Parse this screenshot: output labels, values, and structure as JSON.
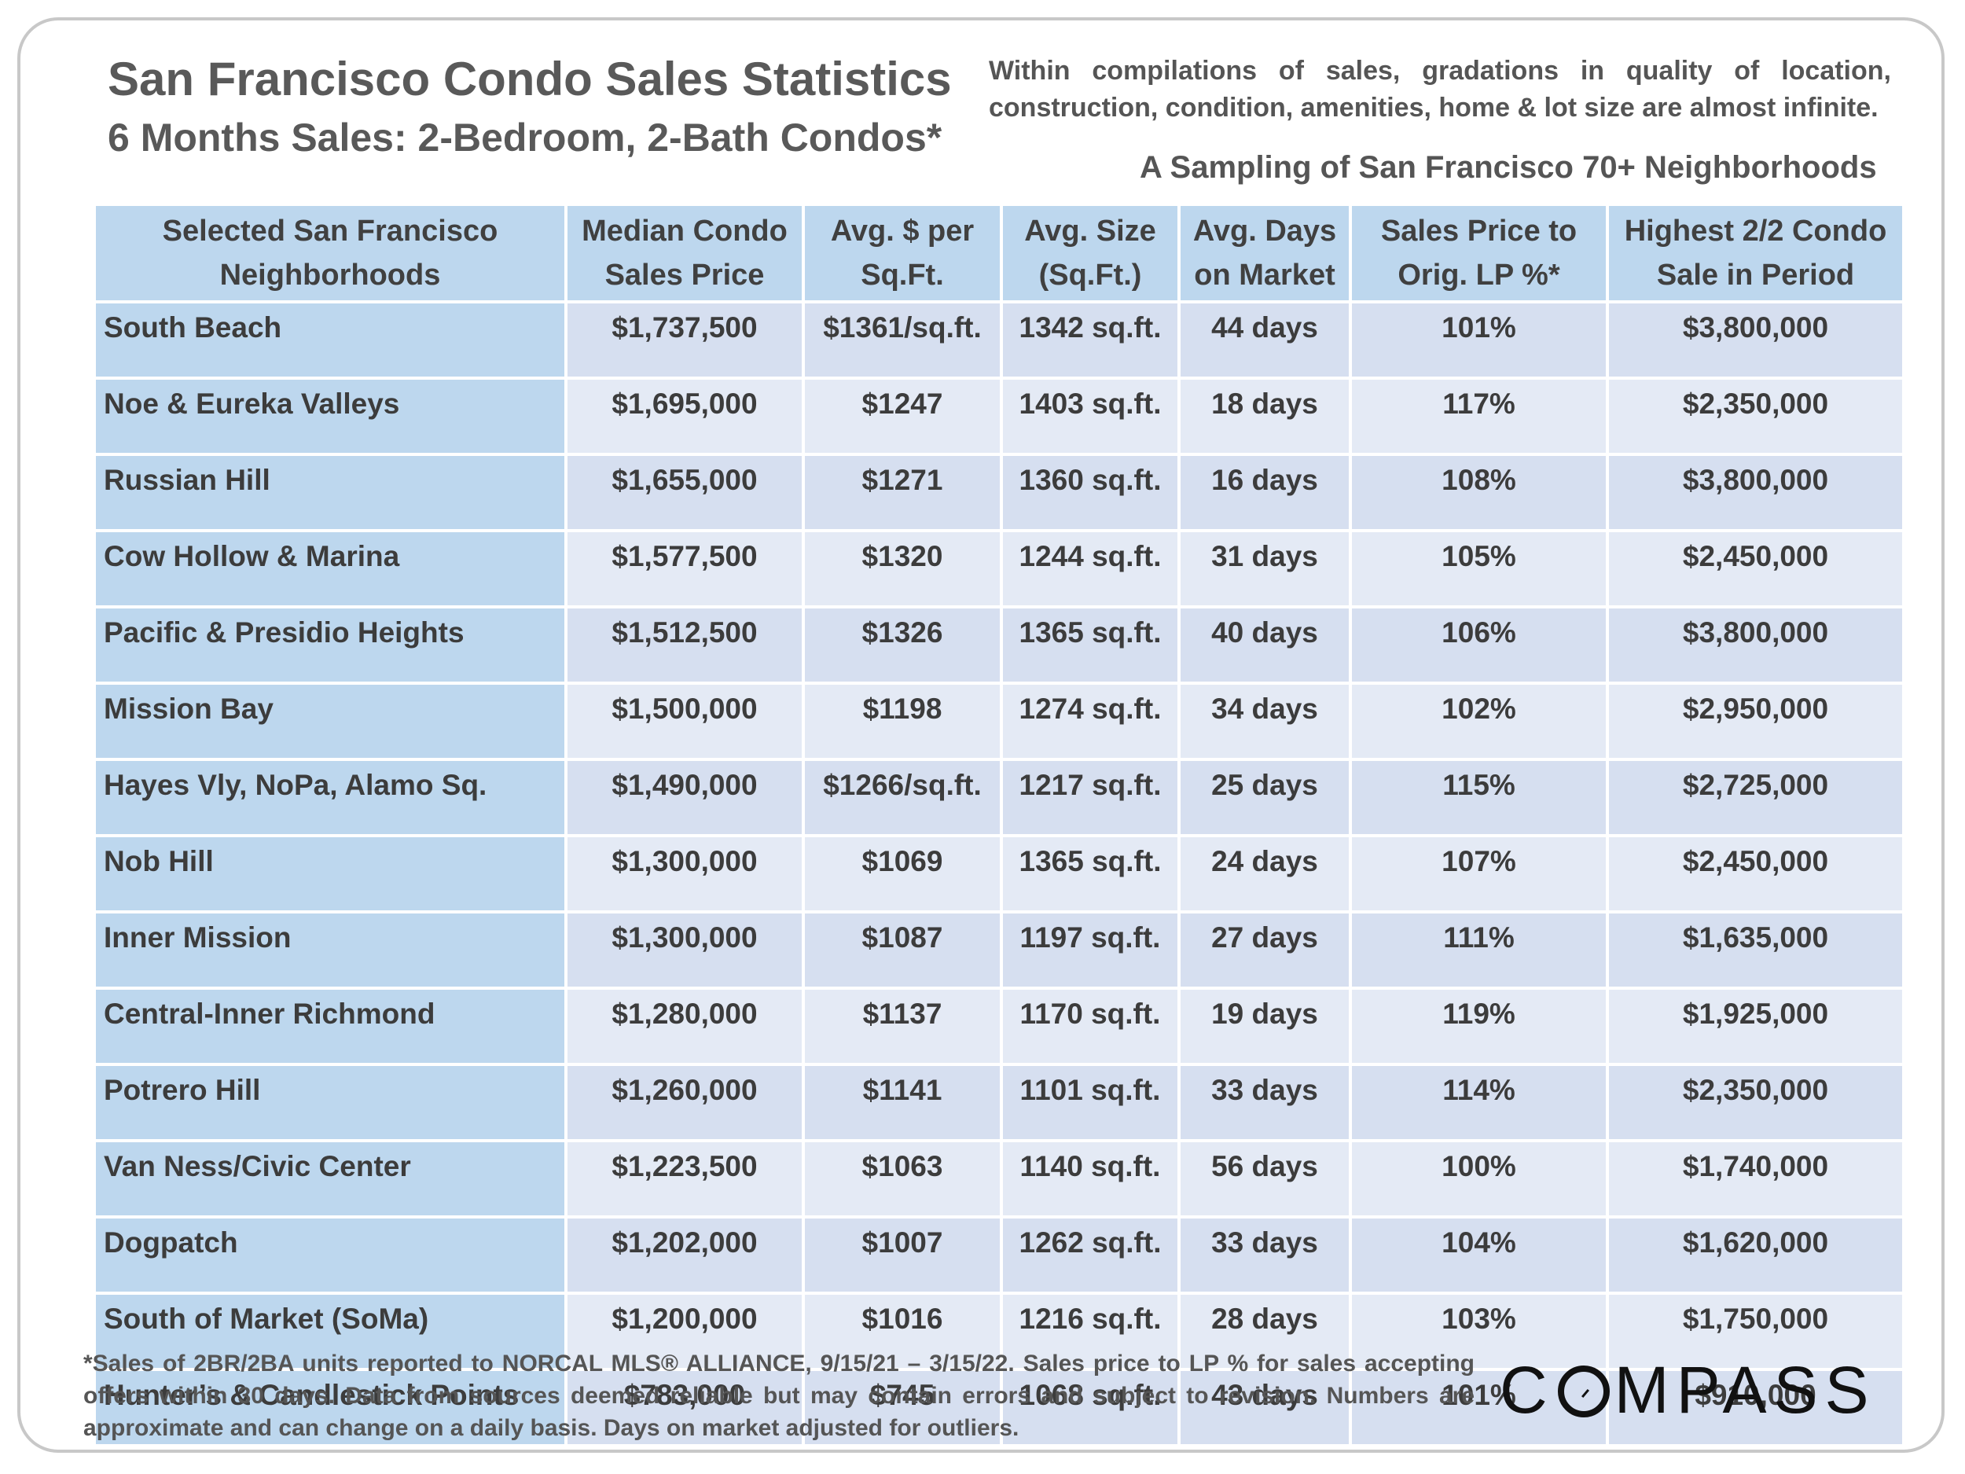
{
  "header": {
    "title": "San Francisco Condo Sales Statistics",
    "subtitle": "6 Months Sales: 2-Bedroom, 2-Bath Condos*",
    "note_line1": "Within compilations of sales, gradations in quality of location,",
    "note_line2": "construction, condition, amenities,  home & lot size are almost infinite.",
    "sampling": "A Sampling of San Francisco 70+ Neighborhoods"
  },
  "table": {
    "columns": [
      [
        "Selected San Francisco",
        "Neighborhoods"
      ],
      [
        "Median Condo",
        "Sales Price"
      ],
      [
        "Avg. $ per",
        "Sq.Ft."
      ],
      [
        "Avg. Size",
        "(Sq.Ft.)"
      ],
      [
        "Avg. Days",
        "on Market"
      ],
      [
        "Sales Price to",
        "Orig. LP %*"
      ],
      [
        "Highest 2/2 Condo",
        "Sale in Period"
      ]
    ],
    "rows": [
      [
        "South Beach",
        "$1,737,500",
        "$1361/sq.ft.",
        "1342 sq.ft.",
        "44 days",
        "101%",
        "$3,800,000"
      ],
      [
        "Noe & Eureka Valleys",
        "$1,695,000",
        "$1247",
        "1403 sq.ft.",
        "18 days",
        "117%",
        "$2,350,000"
      ],
      [
        "Russian Hill",
        "$1,655,000",
        "$1271",
        "1360 sq.ft.",
        "16 days",
        "108%",
        "$3,800,000"
      ],
      [
        "Cow Hollow & Marina",
        "$1,577,500",
        "$1320",
        "1244 sq.ft.",
        "31 days",
        "105%",
        "$2,450,000"
      ],
      [
        "Pacific & Presidio Heights",
        "$1,512,500",
        "$1326",
        "1365 sq.ft.",
        "40 days",
        "106%",
        "$3,800,000"
      ],
      [
        "Mission Bay",
        "$1,500,000",
        "$1198",
        "1274 sq.ft.",
        "34 days",
        "102%",
        "$2,950,000"
      ],
      [
        "Hayes Vly, NoPa, Alamo Sq.",
        "$1,490,000",
        "$1266/sq.ft.",
        "1217 sq.ft.",
        "25 days",
        "115%",
        "$2,725,000"
      ],
      [
        "Nob Hill",
        "$1,300,000",
        "$1069",
        "1365 sq.ft.",
        "24 days",
        "107%",
        "$2,450,000"
      ],
      [
        "Inner Mission",
        "$1,300,000",
        "$1087",
        "1197 sq.ft.",
        "27 days",
        "111%",
        "$1,635,000"
      ],
      [
        "Central-Inner Richmond",
        "$1,280,000",
        "$1137",
        "1170 sq.ft.",
        "19 days",
        "119%",
        "$1,925,000"
      ],
      [
        "Potrero Hill",
        "$1,260,000",
        "$1141",
        "1101 sq.ft.",
        "33 days",
        "114%",
        "$2,350,000"
      ],
      [
        "Van Ness/Civic Center",
        "$1,223,500",
        "$1063",
        "1140 sq.ft.",
        "56 days",
        "100%",
        "$1,740,000"
      ],
      [
        "Dogpatch",
        "$1,202,000",
        "$1007",
        "1262 sq.ft.",
        "33 days",
        "104%",
        "$1,620,000"
      ],
      [
        "South of Market (SoMa)",
        "$1,200,000",
        "$1016",
        "1216 sq.ft.",
        "28 days",
        "103%",
        "$1,750,000"
      ],
      [
        "Hunter’s & Candlestick Points",
        "$783,000",
        "$745",
        "1068 sq.ft.",
        "43 days",
        "101%",
        "$910,000"
      ]
    ]
  },
  "footnote": "*Sales of 2BR/2BA units reported to NORCAL MLS® ALLIANCE, 9/15/21 – 3/15/22. Sales price to LP % for sales accepting offers within 30 days. Data from sources deemed reliable but may contain errors and subject to revision. Numbers are approximate and can change on a daily basis. Days on market adjusted for outliers.",
  "logo": {
    "prefix": "C",
    "suffix": "MPASS",
    "text": "COMPASS"
  }
}
